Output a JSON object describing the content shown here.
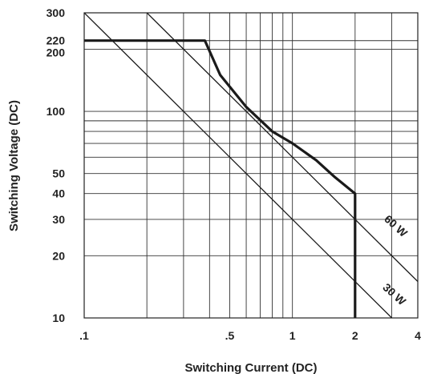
{
  "chart_data": {
    "type": "line",
    "title": "",
    "xlabel": "Switching Current (DC)",
    "ylabel": "Switching Voltage (DC)",
    "x_scale": "log",
    "y_scale": "log",
    "xlim": [
      0.1,
      4
    ],
    "ylim": [
      10,
      300
    ],
    "x_tick_labels": [
      {
        "value": 0.1,
        "label": ".1"
      },
      {
        "value": 0.5,
        "label": ".5"
      },
      {
        "value": 1,
        "label": "1"
      },
      {
        "value": 2,
        "label": "2"
      },
      {
        "value": 4,
        "label": "4"
      }
    ],
    "y_tick_labels": [
      {
        "value": 10,
        "label": "10"
      },
      {
        "value": 20,
        "label": "20"
      },
      {
        "value": 30,
        "label": "30"
      },
      {
        "value": 40,
        "label": "40"
      },
      {
        "value": 50,
        "label": "50"
      },
      {
        "value": 100,
        "label": "100"
      },
      {
        "value": 200,
        "label": "200"
      },
      {
        "value": 220,
        "label": "220"
      },
      {
        "value": 300,
        "label": "300"
      }
    ],
    "x_gridlines": [
      0.2,
      0.3,
      0.4,
      0.5,
      0.6,
      0.7,
      0.8,
      0.9,
      1,
      2,
      3
    ],
    "y_gridlines": [
      20,
      30,
      40,
      50,
      60,
      70,
      80,
      90,
      100,
      200,
      220
    ],
    "grid": true,
    "series": [
      {
        "style": "bold",
        "points": [
          [
            0.1,
            220
          ],
          [
            0.38,
            220
          ],
          [
            0.45,
            150
          ],
          [
            0.6,
            105
          ],
          [
            0.8,
            80
          ],
          [
            1,
            70
          ],
          [
            1.3,
            58
          ],
          [
            1.6,
            48
          ],
          [
            2,
            40
          ],
          [
            2,
            10
          ]
        ]
      },
      {
        "name": "60 W",
        "style": "thin",
        "points": [
          [
            0.2,
            300
          ],
          [
            4,
            15
          ]
        ]
      },
      {
        "name": "30 W",
        "style": "thin",
        "points": [
          [
            0.1,
            300
          ],
          [
            3,
            10
          ]
        ]
      }
    ],
    "line_labels": [
      {
        "text": "60 W",
        "x": 3.05,
        "y": 27
      },
      {
        "text": "30 W",
        "x": 3.0,
        "y": 12.6
      }
    ]
  }
}
